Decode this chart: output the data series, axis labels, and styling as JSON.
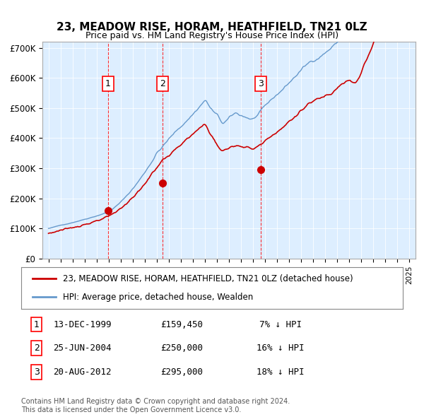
{
  "title": "23, MEADOW RISE, HORAM, HEATHFIELD, TN21 0LZ",
  "subtitle": "Price paid vs. HM Land Registry's House Price Index (HPI)",
  "legend_line1": "23, MEADOW RISE, HORAM, HEATHFIELD, TN21 0LZ (detached house)",
  "legend_line2": "HPI: Average price, detached house, Wealden",
  "hpi_color": "#6699cc",
  "paid_color": "#cc0000",
  "sale_marker_color": "#cc0000",
  "background_color": "#ddeeff",
  "purchase_dates": [
    1999.95,
    2004.48,
    2012.64
  ],
  "purchase_prices": [
    159450,
    250000,
    295000
  ],
  "purchase_labels": [
    "1",
    "2",
    "3"
  ],
  "table_rows": [
    [
      "1",
      "13-DEC-1999",
      "£159,450",
      "7% ↓ HPI"
    ],
    [
      "2",
      "25-JUN-2004",
      "£250,000",
      "16% ↓ HPI"
    ],
    [
      "3",
      "20-AUG-2012",
      "£295,000",
      "18% ↓ HPI"
    ]
  ],
  "footer": "Contains HM Land Registry data © Crown copyright and database right 2024.\nThis data is licensed under the Open Government Licence v3.0.",
  "ylim": [
    0,
    720000
  ],
  "yticks": [
    0,
    100000,
    200000,
    300000,
    400000,
    500000,
    600000,
    700000
  ],
  "ytick_labels": [
    "£0",
    "£100K",
    "£200K",
    "£300K",
    "£400K",
    "£500K",
    "£600K",
    "£700K"
  ],
  "xlim_start": 1994.5,
  "xlim_end": 2025.5
}
